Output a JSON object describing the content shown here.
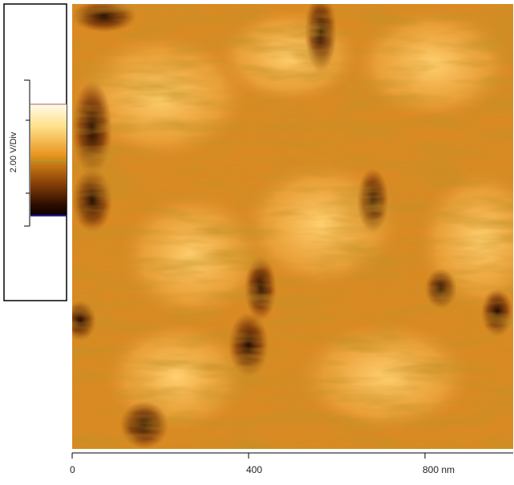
{
  "colorbar": {
    "label": "2.00 V/Div"
  },
  "x_axis": {
    "xlim": [
      0,
      1000
    ],
    "xticks": [
      0,
      400,
      {
        "value": 800,
        "label": "800 nm"
      }
    ]
  }
}
